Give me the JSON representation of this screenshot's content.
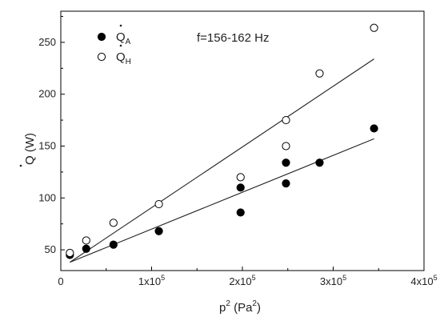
{
  "chart_data": {
    "type": "scatter",
    "xlim": [
      0,
      400000
    ],
    "ylim": [
      30,
      280
    ],
    "x_ticks": [
      {
        "value": 0,
        "base": "0",
        "exp": ""
      },
      {
        "value": 100000,
        "base": "1x10",
        "exp": "5"
      },
      {
        "value": 200000,
        "base": "2x10",
        "exp": "5"
      },
      {
        "value": 300000,
        "base": "3x10",
        "exp": "5"
      },
      {
        "value": 400000,
        "base": "4x10",
        "exp": "5"
      }
    ],
    "y_ticks": [
      50,
      100,
      150,
      200,
      250
    ],
    "xlabel": {
      "pre": "p",
      "sup1": "2",
      "mid": " (Pa",
      "sup2": "2",
      "post": ")"
    },
    "ylabel": {
      "main": "Q",
      "rest": " (W)"
    },
    "annotation": "f=156-162 Hz",
    "legend_position": "top-left",
    "series": [
      {
        "name_main": "Q",
        "name_sub": "A",
        "marker": "filled-circle",
        "color": "#000000",
        "points": [
          [
            10000,
            45
          ],
          [
            28000,
            51
          ],
          [
            58000,
            55
          ],
          [
            108000,
            68
          ],
          [
            198000,
            110
          ],
          [
            198000,
            86
          ],
          [
            248000,
            134
          ],
          [
            248000,
            114
          ],
          [
            285000,
            134
          ],
          [
            345000,
            167
          ]
        ],
        "fit": {
          "x": [
            10000,
            345000
          ],
          "y": [
            38,
            157
          ]
        }
      },
      {
        "name_main": "Q",
        "name_sub": "H",
        "marker": "open-circle",
        "color": "#000000",
        "points": [
          [
            10000,
            47
          ],
          [
            28000,
            59
          ],
          [
            58000,
            76
          ],
          [
            108000,
            94
          ],
          [
            198000,
            120
          ],
          [
            248000,
            175
          ],
          [
            248000,
            150
          ],
          [
            285000,
            220
          ],
          [
            345000,
            264
          ]
        ],
        "fit": {
          "x": [
            10000,
            345000
          ],
          "y": [
            38,
            234
          ]
        }
      }
    ]
  }
}
